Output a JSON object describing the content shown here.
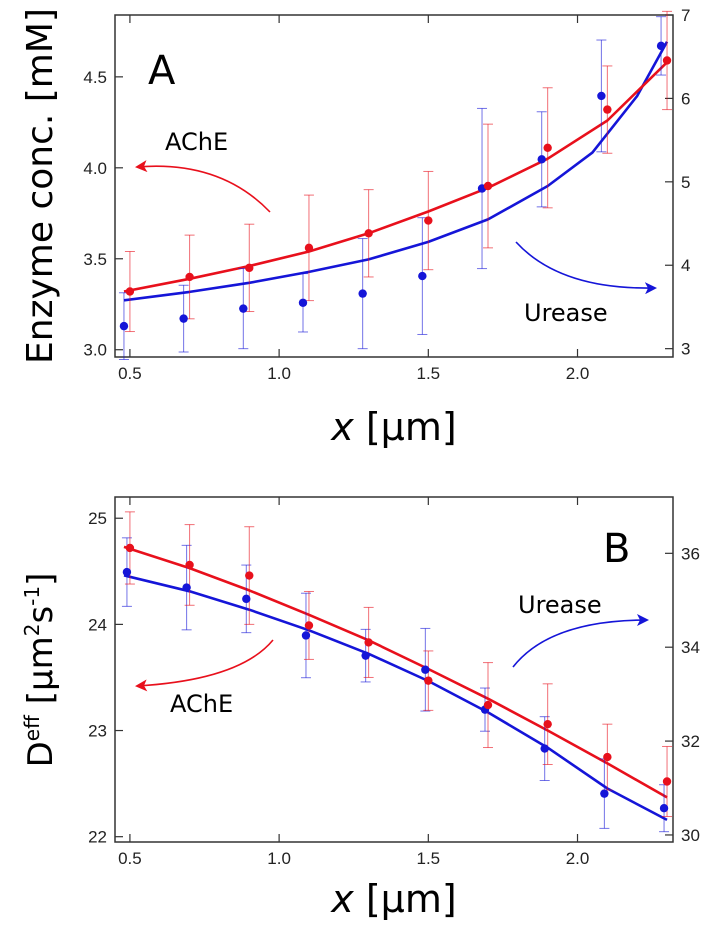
{
  "chart_data": [
    {
      "type": "scatter",
      "panel_label": "A",
      "xlabel_var": "x",
      "xlabel_unit": " [μm]",
      "ylabel": "Enzyme conc. [mM]",
      "xlim": [
        0.45,
        2.32
      ],
      "ylim_left": [
        2.96,
        4.84
      ],
      "ylim_right": [
        2.9,
        7.0
      ],
      "x_ticks": [
        "0.5",
        "1.0",
        "1.5",
        "2.0"
      ],
      "x_tick_values": [
        0.5,
        1.0,
        1.5,
        2.0
      ],
      "y_ticks_left": [
        "3.0",
        "3.5",
        "4.0",
        "4.5"
      ],
      "y_tick_values_left": [
        3.0,
        3.5,
        4.0,
        4.5
      ],
      "y_ticks_right": [
        "3",
        "4",
        "5",
        "6",
        "7"
      ],
      "y_tick_values_right": [
        3,
        4,
        5,
        6,
        7
      ],
      "series": [
        {
          "name": "AChE",
          "axis": "left",
          "color": "#e8101c",
          "x": [
            0.5,
            0.7,
            0.9,
            1.1,
            1.3,
            1.5,
            1.7,
            1.9,
            2.1,
            2.3
          ],
          "y": [
            3.32,
            3.4,
            3.45,
            3.56,
            3.64,
            3.71,
            3.9,
            4.11,
            4.32,
            4.59
          ],
          "err": [
            0.22,
            0.23,
            0.24,
            0.29,
            0.24,
            0.27,
            0.34,
            0.33,
            0.24,
            0.27
          ],
          "fit_x": [
            0.48,
            0.7,
            0.9,
            1.1,
            1.3,
            1.5,
            1.7,
            1.9,
            2.1,
            2.3
          ],
          "fit_y": [
            3.32,
            3.39,
            3.46,
            3.54,
            3.64,
            3.76,
            3.89,
            4.05,
            4.26,
            4.58
          ]
        },
        {
          "name": "Urease",
          "axis": "right",
          "color": "#1515d8",
          "x": [
            0.48,
            0.68,
            0.88,
            1.08,
            1.28,
            1.48,
            1.68,
            1.88,
            2.08,
            2.28
          ],
          "y": [
            3.27,
            3.36,
            3.48,
            3.55,
            3.66,
            3.87,
            4.92,
            5.27,
            6.03,
            6.63
          ],
          "err": [
            0.4,
            0.4,
            0.48,
            0.35,
            0.66,
            0.7,
            0.96,
            0.57,
            0.67,
            0.35
          ],
          "fit_x": [
            0.48,
            0.7,
            0.9,
            1.1,
            1.3,
            1.5,
            1.7,
            1.9,
            2.05,
            2.2,
            2.3
          ],
          "fit_y": [
            3.58,
            3.68,
            3.79,
            3.92,
            4.07,
            4.28,
            4.55,
            4.95,
            5.35,
            6.03,
            6.68
          ]
        }
      ],
      "annotations": [
        {
          "text": "AChE",
          "color": "#e8101c"
        },
        {
          "text": "Urease",
          "color": "#1515d8"
        }
      ]
    },
    {
      "type": "scatter",
      "panel_label": "B",
      "xlabel_var": "x",
      "xlabel_unit": " [μm]",
      "ylabel_main": "D",
      "ylabel_sup": "eff",
      "ylabel_unit_a": " [μm",
      "ylabel_unit_sup_a": "2",
      "ylabel_unit_b": "s",
      "ylabel_unit_sup_b": "-1",
      "ylabel_unit_c": "]",
      "xlim": [
        0.45,
        2.32
      ],
      "ylim_left": [
        21.95,
        25.2
      ],
      "ylim_right": [
        29.85,
        37.2
      ],
      "x_ticks": [
        "0.5",
        "1.0",
        "1.5",
        "2.0"
      ],
      "x_tick_values": [
        0.5,
        1.0,
        1.5,
        2.0
      ],
      "y_ticks_left": [
        "22",
        "23",
        "24",
        "25"
      ],
      "y_tick_values_left": [
        22,
        23,
        24,
        25
      ],
      "y_ticks_right": [
        "30",
        "32",
        "34",
        "36"
      ],
      "y_tick_values_right": [
        30,
        32,
        34,
        36
      ],
      "series": [
        {
          "name": "AChE",
          "axis": "left",
          "color": "#e8101c",
          "x": [
            0.5,
            0.7,
            0.9,
            1.1,
            1.3,
            1.5,
            1.7,
            1.9,
            2.1,
            2.3
          ],
          "y": [
            24.72,
            24.56,
            24.46,
            23.99,
            23.83,
            23.47,
            23.24,
            23.06,
            22.75,
            22.52
          ],
          "err": [
            0.34,
            0.38,
            0.46,
            0.32,
            0.33,
            0.28,
            0.4,
            0.38,
            0.31,
            0.33
          ],
          "fit_x": [
            0.48,
            0.7,
            0.9,
            1.1,
            1.3,
            1.5,
            1.7,
            1.9,
            2.1,
            2.3
          ],
          "fit_y": [
            24.73,
            24.53,
            24.32,
            24.09,
            23.85,
            23.58,
            23.3,
            23.0,
            22.69,
            22.37
          ]
        },
        {
          "name": "Urease",
          "axis": "right",
          "color": "#1515d8",
          "x": [
            0.49,
            0.69,
            0.89,
            1.09,
            1.29,
            1.49,
            1.69,
            1.89,
            2.09,
            2.29
          ],
          "y": [
            35.6,
            35.27,
            35.03,
            34.25,
            33.82,
            33.52,
            32.67,
            31.84,
            30.88,
            30.57
          ],
          "err": [
            0.73,
            0.9,
            0.72,
            0.9,
            0.56,
            0.88,
            0.46,
            0.68,
            0.74,
            0.5
          ],
          "fit_x": [
            0.48,
            0.7,
            0.9,
            1.1,
            1.3,
            1.5,
            1.7,
            1.9,
            2.1,
            2.3
          ],
          "fit_y": [
            35.53,
            35.19,
            34.8,
            34.36,
            33.86,
            33.28,
            32.61,
            31.86,
            30.99,
            30.32
          ]
        }
      ],
      "annotations": [
        {
          "text": "AChE",
          "color": "#e8101c"
        },
        {
          "text": "Urease",
          "color": "#1515d8"
        }
      ]
    }
  ]
}
